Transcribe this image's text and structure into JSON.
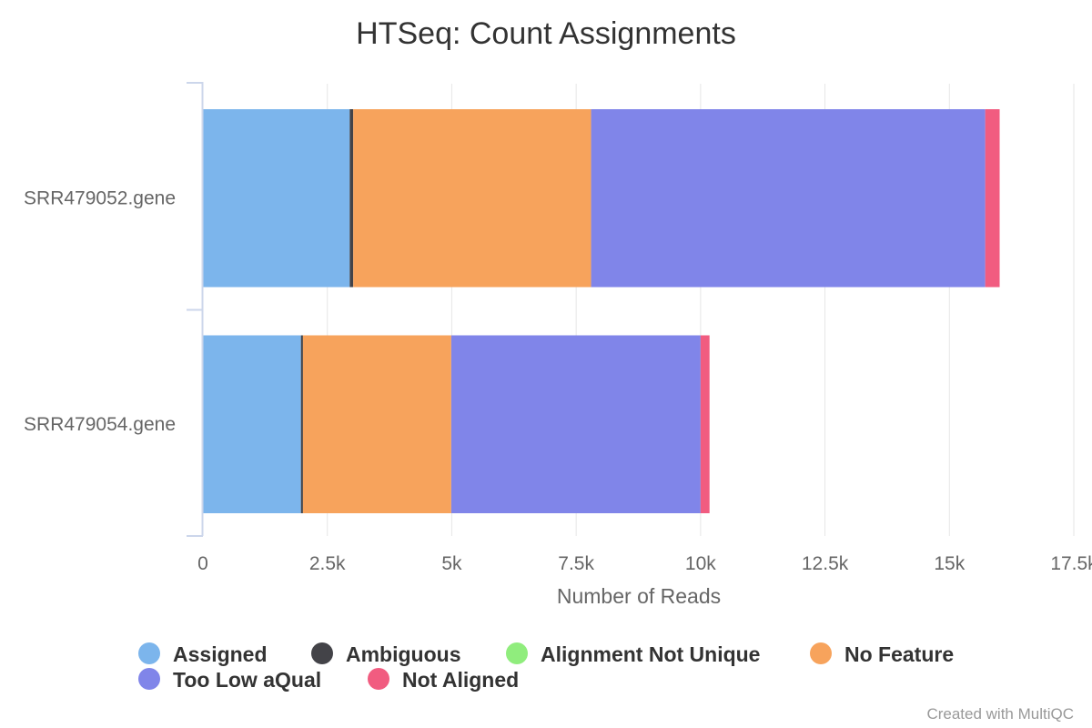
{
  "chart_data": {
    "type": "bar",
    "orientation": "horizontal",
    "stacked": true,
    "title": "HTSeq: Count Assignments",
    "xlabel": "Number of Reads",
    "ylabel": "",
    "xlim": [
      0,
      17500
    ],
    "x_ticks": [
      0,
      2500,
      5000,
      7500,
      10000,
      12500,
      15000,
      17500
    ],
    "x_tick_labels": [
      "0",
      "2.5k",
      "5k",
      "7.5k",
      "10k",
      "12.5k",
      "15k",
      "17.5k"
    ],
    "grid": true,
    "legend_position": "bottom",
    "categories": [
      "SRR479052.gene",
      "SRR479054.gene"
    ],
    "series": [
      {
        "name": "Assigned",
        "color": "#7cb5ec",
        "values": [
          2950,
          1970
        ]
      },
      {
        "name": "Ambiguous",
        "color": "#434348",
        "values": [
          70,
          40
        ]
      },
      {
        "name": "Alignment Not Unique",
        "color": "#90ed7d",
        "values": [
          0,
          0
        ]
      },
      {
        "name": "No Feature",
        "color": "#f7a35c",
        "values": [
          4780,
          2980
        ]
      },
      {
        "name": "Too Low aQual",
        "color": "#8085e9",
        "values": [
          7920,
          5010
        ]
      },
      {
        "name": "Not Aligned",
        "color": "#f15c80",
        "values": [
          290,
          180
        ]
      }
    ]
  },
  "credit": "Created with MultiQC"
}
